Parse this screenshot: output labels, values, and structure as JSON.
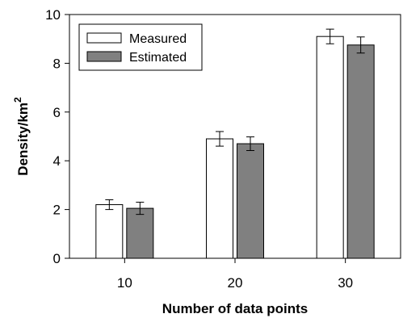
{
  "chart_data": {
    "type": "bar",
    "categories": [
      "10",
      "20",
      "30"
    ],
    "series": [
      {
        "name": "Measured",
        "values": [
          2.2,
          4.9,
          9.1
        ],
        "errors": [
          0.2,
          0.3,
          0.3
        ],
        "color": "#ffffff"
      },
      {
        "name": "Estimated",
        "values": [
          2.05,
          4.7,
          8.75
        ],
        "errors": [
          0.25,
          0.28,
          0.33
        ],
        "color": "#808080"
      }
    ],
    "xlabel": "Number of data points",
    "ylabel_main": "Density/km",
    "ylabel_sup": "2",
    "ylim": [
      0,
      10
    ],
    "yticks": [
      "0",
      "2",
      "4",
      "6",
      "8",
      "10"
    ],
    "legend_position": "top-left",
    "grid": false
  }
}
